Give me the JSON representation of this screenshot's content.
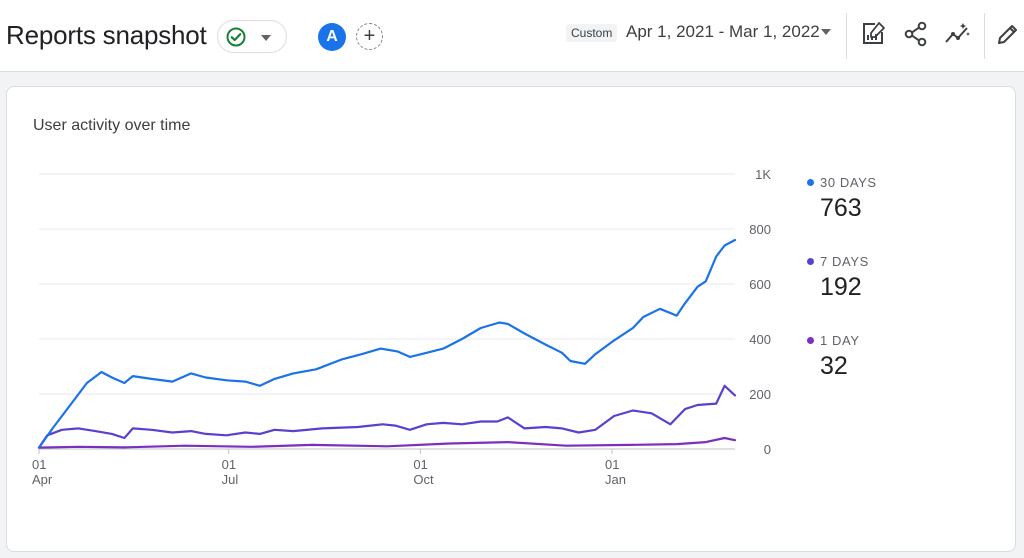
{
  "header": {
    "title": "Reports snapshot",
    "avatar_letter": "A",
    "add_label": "+",
    "custom_badge": "Custom",
    "date_range": "Apr 1, 2021 - Mar 1, 2022"
  },
  "icons": {
    "status": "check-circle-icon",
    "dropdown": "chevron-down-icon",
    "customize": "customize-report-icon",
    "share": "share-icon",
    "insights": "insights-icon",
    "edit": "pencil-icon"
  },
  "colors": {
    "accent": "#1a73e8",
    "success": "#188038",
    "series_30": "#1a73e8",
    "series_7": "#5c3fd1",
    "series_1": "#7b2fbe"
  },
  "card": {
    "title": "User activity over time"
  },
  "legend": [
    {
      "label": "30 DAYS",
      "value": "763",
      "color": "#1a73e8"
    },
    {
      "label": "7 DAYS",
      "value": "192",
      "color": "#5c3fd1"
    },
    {
      "label": "1 DAY",
      "value": "32",
      "color": "#7b2fbe"
    }
  ],
  "chart_data": {
    "type": "line",
    "title": "User activity over time",
    "y_axis_position": "right",
    "ylim": [
      0,
      1000
    ],
    "y_ticks": [
      0,
      200,
      400,
      600,
      800,
      1000
    ],
    "y_tick_labels": [
      "0",
      "200",
      "400",
      "600",
      "800",
      "1K"
    ],
    "grid": true,
    "x_ticks": [
      {
        "date": "2021-04-01",
        "day": "01",
        "month": "Apr"
      },
      {
        "date": "2021-07-01",
        "day": "01",
        "month": "Jul"
      },
      {
        "date": "2021-10-01",
        "day": "01",
        "month": "Oct"
      },
      {
        "date": "2022-01-01",
        "day": "01",
        "month": "Jan"
      }
    ],
    "xlim": [
      "2021-04-01",
      "2022-03-01"
    ],
    "legend_position": "right",
    "series": [
      {
        "name": "30 DAYS",
        "color": "#1a73e8",
        "points": [
          [
            "2021-04-01",
            5
          ],
          [
            "2021-04-08",
            80
          ],
          [
            "2021-04-16",
            160
          ],
          [
            "2021-04-24",
            240
          ],
          [
            "2021-05-01",
            280
          ],
          [
            "2021-05-06",
            260
          ],
          [
            "2021-05-12",
            240
          ],
          [
            "2021-05-16",
            265
          ],
          [
            "2021-05-25",
            255
          ],
          [
            "2021-06-04",
            245
          ],
          [
            "2021-06-13",
            275
          ],
          [
            "2021-06-20",
            260
          ],
          [
            "2021-06-30",
            250
          ],
          [
            "2021-07-09",
            245
          ],
          [
            "2021-07-16",
            230
          ],
          [
            "2021-07-23",
            255
          ],
          [
            "2021-08-01",
            275
          ],
          [
            "2021-08-12",
            290
          ],
          [
            "2021-08-24",
            325
          ],
          [
            "2021-09-03",
            345
          ],
          [
            "2021-09-12",
            365
          ],
          [
            "2021-09-20",
            355
          ],
          [
            "2021-09-26",
            335
          ],
          [
            "2021-10-04",
            350
          ],
          [
            "2021-10-12",
            365
          ],
          [
            "2021-10-21",
            400
          ],
          [
            "2021-10-30",
            440
          ],
          [
            "2021-11-08",
            460
          ],
          [
            "2021-11-12",
            455
          ],
          [
            "2021-11-20",
            420
          ],
          [
            "2021-11-30",
            380
          ],
          [
            "2021-12-08",
            350
          ],
          [
            "2021-12-12",
            320
          ],
          [
            "2021-12-19",
            310
          ],
          [
            "2021-12-24",
            345
          ],
          [
            "2022-01-02",
            395
          ],
          [
            "2022-01-11",
            440
          ],
          [
            "2022-01-16",
            480
          ],
          [
            "2022-01-24",
            510
          ],
          [
            "2022-02-01",
            485
          ],
          [
            "2022-02-05",
            530
          ],
          [
            "2022-02-11",
            590
          ],
          [
            "2022-02-15",
            610
          ],
          [
            "2022-02-20",
            700
          ],
          [
            "2022-02-24",
            740
          ],
          [
            "2022-03-01",
            760
          ]
        ]
      },
      {
        "name": "7 DAYS",
        "color": "#5c3fd1",
        "points": [
          [
            "2021-04-01",
            5
          ],
          [
            "2021-04-05",
            50
          ],
          [
            "2021-04-12",
            70
          ],
          [
            "2021-04-20",
            75
          ],
          [
            "2021-04-28",
            65
          ],
          [
            "2021-05-06",
            55
          ],
          [
            "2021-05-12",
            40
          ],
          [
            "2021-05-16",
            75
          ],
          [
            "2021-05-25",
            70
          ],
          [
            "2021-06-04",
            60
          ],
          [
            "2021-06-13",
            65
          ],
          [
            "2021-06-20",
            55
          ],
          [
            "2021-06-30",
            50
          ],
          [
            "2021-07-09",
            60
          ],
          [
            "2021-07-16",
            55
          ],
          [
            "2021-07-23",
            70
          ],
          [
            "2021-08-01",
            65
          ],
          [
            "2021-08-15",
            75
          ],
          [
            "2021-09-01",
            80
          ],
          [
            "2021-09-13",
            90
          ],
          [
            "2021-09-19",
            85
          ],
          [
            "2021-09-26",
            70
          ],
          [
            "2021-10-04",
            90
          ],
          [
            "2021-10-12",
            95
          ],
          [
            "2021-10-21",
            90
          ],
          [
            "2021-10-30",
            100
          ],
          [
            "2021-11-07",
            100
          ],
          [
            "2021-11-12",
            115
          ],
          [
            "2021-11-20",
            75
          ],
          [
            "2021-11-30",
            80
          ],
          [
            "2021-12-08",
            75
          ],
          [
            "2021-12-16",
            60
          ],
          [
            "2021-12-24",
            70
          ],
          [
            "2022-01-02",
            120
          ],
          [
            "2022-01-11",
            140
          ],
          [
            "2022-01-20",
            130
          ],
          [
            "2022-01-29",
            90
          ],
          [
            "2022-02-05",
            145
          ],
          [
            "2022-02-11",
            160
          ],
          [
            "2022-02-20",
            165
          ],
          [
            "2022-02-24",
            230
          ],
          [
            "2022-03-01",
            195
          ]
        ]
      },
      {
        "name": "1 DAY",
        "color": "#7b2fbe",
        "points": [
          [
            "2021-04-01",
            5
          ],
          [
            "2021-04-20",
            8
          ],
          [
            "2021-05-12",
            6
          ],
          [
            "2021-06-10",
            12
          ],
          [
            "2021-07-12",
            8
          ],
          [
            "2021-08-10",
            15
          ],
          [
            "2021-09-15",
            10
          ],
          [
            "2021-10-15",
            20
          ],
          [
            "2021-11-12",
            25
          ],
          [
            "2021-12-10",
            12
          ],
          [
            "2022-01-10",
            15
          ],
          [
            "2022-02-01",
            18
          ],
          [
            "2022-02-15",
            25
          ],
          [
            "2022-02-24",
            40
          ],
          [
            "2022-03-01",
            32
          ]
        ]
      }
    ]
  }
}
